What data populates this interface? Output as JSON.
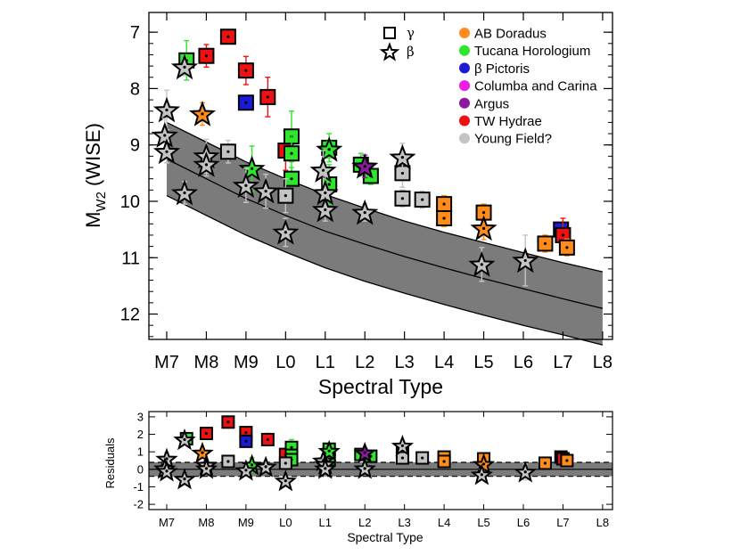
{
  "chart_data": [
    {
      "type": "scatter",
      "xlabel": "Spectral Type",
      "ylabel_base": "M",
      "ylabel_sub": "W2",
      "ylabel_rest": " (WISE)",
      "x_tick_labels": [
        "M7",
        "M8",
        "M9",
        "L0",
        "L1",
        "L2",
        "L3",
        "L4",
        "L5",
        "L6",
        "L7",
        "L8"
      ],
      "x_tick_values": [
        7,
        8,
        9,
        10,
        11,
        12,
        13,
        14,
        15,
        16,
        17,
        18
      ],
      "xlim": [
        6.55,
        18.25
      ],
      "y_ticks": [
        7,
        8,
        9,
        10,
        11,
        12
      ],
      "ylim": [
        12.45,
        6.65
      ],
      "y_inverted": true,
      "band": {
        "center": [
          [
            7.0,
            9.25
          ],
          [
            8,
            9.6
          ],
          [
            9,
            9.95
          ],
          [
            10,
            10.25
          ],
          [
            11,
            10.53
          ],
          [
            12,
            10.76
          ],
          [
            13,
            10.98
          ],
          [
            14,
            11.18
          ],
          [
            15,
            11.37
          ],
          [
            16,
            11.55
          ],
          [
            17,
            11.73
          ],
          [
            18,
            11.9
          ]
        ],
        "upper": [
          [
            7.0,
            8.6
          ],
          [
            8,
            8.95
          ],
          [
            9,
            9.3
          ],
          [
            10,
            9.6
          ],
          [
            11,
            9.88
          ],
          [
            12,
            10.12
          ],
          [
            13,
            10.35
          ],
          [
            14,
            10.55
          ],
          [
            15,
            10.73
          ],
          [
            16,
            10.91
          ],
          [
            17,
            11.09
          ],
          [
            18,
            11.25
          ]
        ],
        "lower": [
          [
            7.0,
            9.9
          ],
          [
            8,
            10.25
          ],
          [
            9,
            10.6
          ],
          [
            10,
            10.9
          ],
          [
            11,
            11.18
          ],
          [
            12,
            11.42
          ],
          [
            13,
            11.63
          ],
          [
            14,
            11.83
          ],
          [
            15,
            12.02
          ],
          [
            16,
            12.2
          ],
          [
            17,
            12.37
          ],
          [
            18,
            12.55
          ]
        ]
      },
      "legend": {
        "symbols": [
          {
            "marker": "square",
            "label": "γ"
          },
          {
            "marker": "star",
            "label": "β"
          }
        ],
        "groups": [
          {
            "name": "AB Doradus",
            "color": "#ff8c1a"
          },
          {
            "name": "Tucana Horologium",
            "color": "#2ee62e"
          },
          {
            "name": "β Pictoris",
            "color": "#1a1ad9"
          },
          {
            "name": "Columba and Carina",
            "color": "#ee1ee6"
          },
          {
            "name": "Argus",
            "color": "#8b1a9e"
          },
          {
            "name": "TW Hydrae",
            "color": "#ee1111"
          },
          {
            "name": "Young Field?",
            "color": "#c4c4c4"
          }
        ]
      },
      "points": [
        {
          "x": 7.5,
          "y": 7.5,
          "m": "sq",
          "g": 1,
          "e": 0.35
        },
        {
          "x": 8.0,
          "y": 7.42,
          "m": "sq",
          "g": 5,
          "e": 0.2
        },
        {
          "x": 8.55,
          "y": 7.08,
          "m": "sq",
          "g": 5,
          "e": 0.12
        },
        {
          "x": 9.0,
          "y": 7.68,
          "m": "sq",
          "g": 5,
          "e": 0.25
        },
        {
          "x": 9.0,
          "y": 8.25,
          "m": "sq",
          "g": 2,
          "e": 0.1
        },
        {
          "x": 9.55,
          "y": 8.15,
          "m": "sq",
          "g": 5,
          "e": 0.35
        },
        {
          "x": 8.55,
          "y": 9.12,
          "m": "sq",
          "g": 6,
          "e": 0.2
        },
        {
          "x": 10.0,
          "y": 9.1,
          "m": "sq",
          "g": 5,
          "e": 0.35
        },
        {
          "x": 10.15,
          "y": 8.85,
          "m": "sq",
          "g": 1,
          "e": 0.45
        },
        {
          "x": 10.15,
          "y": 9.15,
          "m": "sq",
          "g": 1,
          "e": 0.35
        },
        {
          "x": 10.15,
          "y": 9.6,
          "m": "sq",
          "g": 1,
          "e": 0.2
        },
        {
          "x": 10.0,
          "y": 9.9,
          "m": "sq",
          "g": 6,
          "e": 0.3
        },
        {
          "x": 11.1,
          "y": 9.05,
          "m": "sq",
          "g": 1,
          "e": 0.25
        },
        {
          "x": 11.1,
          "y": 9.7,
          "m": "sq",
          "g": 1,
          "e": 0.35
        },
        {
          "x": 11.9,
          "y": 9.35,
          "m": "sq",
          "g": 1,
          "e": 0.2
        },
        {
          "x": 12.15,
          "y": 9.55,
          "m": "sq",
          "g": 1,
          "e": 0.15
        },
        {
          "x": 12.95,
          "y": 9.5,
          "m": "sq",
          "g": 6,
          "e": 0.25
        },
        {
          "x": 12.95,
          "y": 9.95,
          "m": "sq",
          "g": 6,
          "e": 0.15
        },
        {
          "x": 13.45,
          "y": 9.97,
          "m": "sq",
          "g": 6,
          "e": 0.15
        },
        {
          "x": 14.0,
          "y": 10.05,
          "m": "sq",
          "g": 0,
          "e": 0.15
        },
        {
          "x": 14.0,
          "y": 10.3,
          "m": "sq",
          "g": 0,
          "e": 0.15
        },
        {
          "x": 15.0,
          "y": 10.2,
          "m": "sq",
          "g": 0,
          "e": 0.15
        },
        {
          "x": 16.55,
          "y": 10.75,
          "m": "sq",
          "g": 0,
          "e": 0.15
        },
        {
          "x": 16.95,
          "y": 10.5,
          "m": "sq",
          "g": 2,
          "e": 0.1
        },
        {
          "x": 17.0,
          "y": 10.6,
          "m": "sq",
          "g": 5,
          "e": 0.3
        },
        {
          "x": 17.1,
          "y": 10.82,
          "m": "sq",
          "g": 0,
          "e": 0.15
        },
        {
          "x": 7.45,
          "y": 7.62,
          "m": "st",
          "g": 6,
          "e": 0.15
        },
        {
          "x": 7.9,
          "y": 8.45,
          "m": "st",
          "g": 0,
          "e": 0.2
        },
        {
          "x": 7.0,
          "y": 8.38,
          "m": "st",
          "g": 6,
          "e": 0.35
        },
        {
          "x": 6.95,
          "y": 8.83,
          "m": "st",
          "g": 6,
          "e": 0.3
        },
        {
          "x": 7.0,
          "y": 9.12,
          "m": "st",
          "g": 6,
          "e": 0.2
        },
        {
          "x": 7.45,
          "y": 9.85,
          "m": "st",
          "g": 6,
          "e": 0.2
        },
        {
          "x": 8.0,
          "y": 9.2,
          "m": "st",
          "g": 6,
          "e": 0.3
        },
        {
          "x": 8.0,
          "y": 9.35,
          "m": "st",
          "g": 6,
          "e": 0.2
        },
        {
          "x": 9.15,
          "y": 9.42,
          "m": "st",
          "g": 1,
          "e": 0.4
        },
        {
          "x": 9.0,
          "y": 9.72,
          "m": "st",
          "g": 6,
          "e": 0.3
        },
        {
          "x": 9.5,
          "y": 9.82,
          "m": "st",
          "g": 6,
          "e": 0.3
        },
        {
          "x": 10.0,
          "y": 10.55,
          "m": "st",
          "g": 6,
          "e": 0.25
        },
        {
          "x": 11.1,
          "y": 9.08,
          "m": "st",
          "g": 1,
          "e": 0.15
        },
        {
          "x": 10.95,
          "y": 9.45,
          "m": "st",
          "g": 6,
          "e": 0.35
        },
        {
          "x": 11.0,
          "y": 9.85,
          "m": "st",
          "g": 6,
          "e": 0.3
        },
        {
          "x": 11.0,
          "y": 10.15,
          "m": "st",
          "g": 6,
          "e": 0.2
        },
        {
          "x": 12.0,
          "y": 9.38,
          "m": "st",
          "g": 4,
          "e": 0.2
        },
        {
          "x": 12.0,
          "y": 10.2,
          "m": "st",
          "g": 6,
          "e": 0.15
        },
        {
          "x": 12.95,
          "y": 9.22,
          "m": "st",
          "g": 6,
          "e": 0.25
        },
        {
          "x": 15.0,
          "y": 10.48,
          "m": "st",
          "g": 0,
          "e": 0.2
        },
        {
          "x": 14.95,
          "y": 11.12,
          "m": "st",
          "g": 6,
          "e": 0.3
        },
        {
          "x": 16.05,
          "y": 11.05,
          "m": "st",
          "g": 6,
          "e": 0.45
        }
      ]
    },
    {
      "type": "scatter",
      "xlabel": "Spectral Type",
      "ylabel": "Residuals",
      "x_tick_labels": [
        "M7",
        "M8",
        "M9",
        "L0",
        "L1",
        "L2",
        "L3",
        "L4",
        "L5",
        "L6",
        "L7",
        "L8"
      ],
      "x_tick_values": [
        7,
        8,
        9,
        10,
        11,
        12,
        13,
        14,
        15,
        16,
        17,
        18
      ],
      "xlim": [
        6.55,
        18.25
      ],
      "y_ticks": [
        -2,
        -1,
        0,
        1,
        2,
        3
      ],
      "ylim": [
        -2.3,
        3.3
      ],
      "band": [
        -0.4,
        0.4
      ],
      "points": [
        {
          "x": 7.5,
          "y": 1.75,
          "m": "sq",
          "g": 1,
          "e": 0.35
        },
        {
          "x": 8.0,
          "y": 2.05,
          "m": "sq",
          "g": 5,
          "e": 0.2
        },
        {
          "x": 8.55,
          "y": 2.7,
          "m": "sq",
          "g": 5,
          "e": 0.12
        },
        {
          "x": 9.0,
          "y": 2.1,
          "m": "sq",
          "g": 5,
          "e": 0.25
        },
        {
          "x": 9.0,
          "y": 1.6,
          "m": "sq",
          "g": 2,
          "e": 0.1
        },
        {
          "x": 9.55,
          "y": 1.7,
          "m": "sq",
          "g": 5,
          "e": 0.35
        },
        {
          "x": 8.55,
          "y": 0.45,
          "m": "sq",
          "g": 6,
          "e": 0.2
        },
        {
          "x": 10.0,
          "y": 0.85,
          "m": "sq",
          "g": 5,
          "e": 0.35
        },
        {
          "x": 10.15,
          "y": 1.25,
          "m": "sq",
          "g": 1,
          "e": 0.45
        },
        {
          "x": 10.15,
          "y": 0.8,
          "m": "sq",
          "g": 1,
          "e": 0.35
        },
        {
          "x": 10.15,
          "y": 0.55,
          "m": "sq",
          "g": 1,
          "e": 0.2
        },
        {
          "x": 10.0,
          "y": 0.35,
          "m": "sq",
          "g": 6,
          "e": 0.3
        },
        {
          "x": 11.1,
          "y": 1.15,
          "m": "sq",
          "g": 1,
          "e": 0.25
        },
        {
          "x": 11.1,
          "y": 0.55,
          "m": "sq",
          "g": 1,
          "e": 0.35
        },
        {
          "x": 11.9,
          "y": 0.85,
          "m": "sq",
          "g": 1,
          "e": 0.2
        },
        {
          "x": 12.15,
          "y": 0.75,
          "m": "sq",
          "g": 1,
          "e": 0.15
        },
        {
          "x": 12.95,
          "y": 1.05,
          "m": "sq",
          "g": 6,
          "e": 0.25
        },
        {
          "x": 12.95,
          "y": 0.65,
          "m": "sq",
          "g": 6,
          "e": 0.15
        },
        {
          "x": 13.45,
          "y": 0.65,
          "m": "sq",
          "g": 6,
          "e": 0.15
        },
        {
          "x": 14.0,
          "y": 0.7,
          "m": "sq",
          "g": 0,
          "e": 0.15
        },
        {
          "x": 14.0,
          "y": 0.45,
          "m": "sq",
          "g": 0,
          "e": 0.15
        },
        {
          "x": 15.0,
          "y": 0.6,
          "m": "sq",
          "g": 0,
          "e": 0.15
        },
        {
          "x": 16.55,
          "y": 0.35,
          "m": "sq",
          "g": 0,
          "e": 0.15
        },
        {
          "x": 16.95,
          "y": 0.7,
          "m": "sq",
          "g": 2,
          "e": 0.1
        },
        {
          "x": 17.0,
          "y": 0.6,
          "m": "sq",
          "g": 5,
          "e": 0.3
        },
        {
          "x": 17.1,
          "y": 0.5,
          "m": "sq",
          "g": 0,
          "e": 0.15
        },
        {
          "x": 7.45,
          "y": 1.7,
          "m": "st",
          "g": 6,
          "e": 0.15
        },
        {
          "x": 7.9,
          "y": 0.95,
          "m": "st",
          "g": 0,
          "e": 0.2
        },
        {
          "x": 7.0,
          "y": 0.6,
          "m": "st",
          "g": 6,
          "e": 0.35
        },
        {
          "x": 6.95,
          "y": 0.05,
          "m": "st",
          "g": 6,
          "e": 0.3
        },
        {
          "x": 7.0,
          "y": -0.1,
          "m": "st",
          "g": 6,
          "e": 0.2
        },
        {
          "x": 7.45,
          "y": -0.55,
          "m": "st",
          "g": 6,
          "e": 0.2
        },
        {
          "x": 8.0,
          "y": 0.25,
          "m": "st",
          "g": 6,
          "e": 0.3
        },
        {
          "x": 8.0,
          "y": 0.05,
          "m": "st",
          "g": 6,
          "e": 0.2
        },
        {
          "x": 9.15,
          "y": 0.25,
          "m": "st",
          "g": 1,
          "e": 0.4
        },
        {
          "x": 9.0,
          "y": -0.05,
          "m": "st",
          "g": 6,
          "e": 0.3
        },
        {
          "x": 9.5,
          "y": 0.15,
          "m": "st",
          "g": 6,
          "e": 0.3
        },
        {
          "x": 10.0,
          "y": -0.65,
          "m": "st",
          "g": 6,
          "e": 0.25
        },
        {
          "x": 11.1,
          "y": 1.05,
          "m": "st",
          "g": 1,
          "e": 0.15
        },
        {
          "x": 10.95,
          "y": 0.5,
          "m": "st",
          "g": 6,
          "e": 0.35
        },
        {
          "x": 11.0,
          "y": 0.3,
          "m": "st",
          "g": 6,
          "e": 0.3
        },
        {
          "x": 11.0,
          "y": 0.05,
          "m": "st",
          "g": 6,
          "e": 0.2
        },
        {
          "x": 12.0,
          "y": 0.95,
          "m": "st",
          "g": 4,
          "e": 0.2
        },
        {
          "x": 12.0,
          "y": 0.05,
          "m": "st",
          "g": 6,
          "e": 0.15
        },
        {
          "x": 12.95,
          "y": 1.35,
          "m": "st",
          "g": 6,
          "e": 0.25
        },
        {
          "x": 15.0,
          "y": 0.3,
          "m": "st",
          "g": 0,
          "e": 0.2
        },
        {
          "x": 14.95,
          "y": -0.3,
          "m": "st",
          "g": 6,
          "e": 0.3
        },
        {
          "x": 16.05,
          "y": -0.15,
          "m": "st",
          "g": 6,
          "e": 0.45
        }
      ]
    }
  ]
}
